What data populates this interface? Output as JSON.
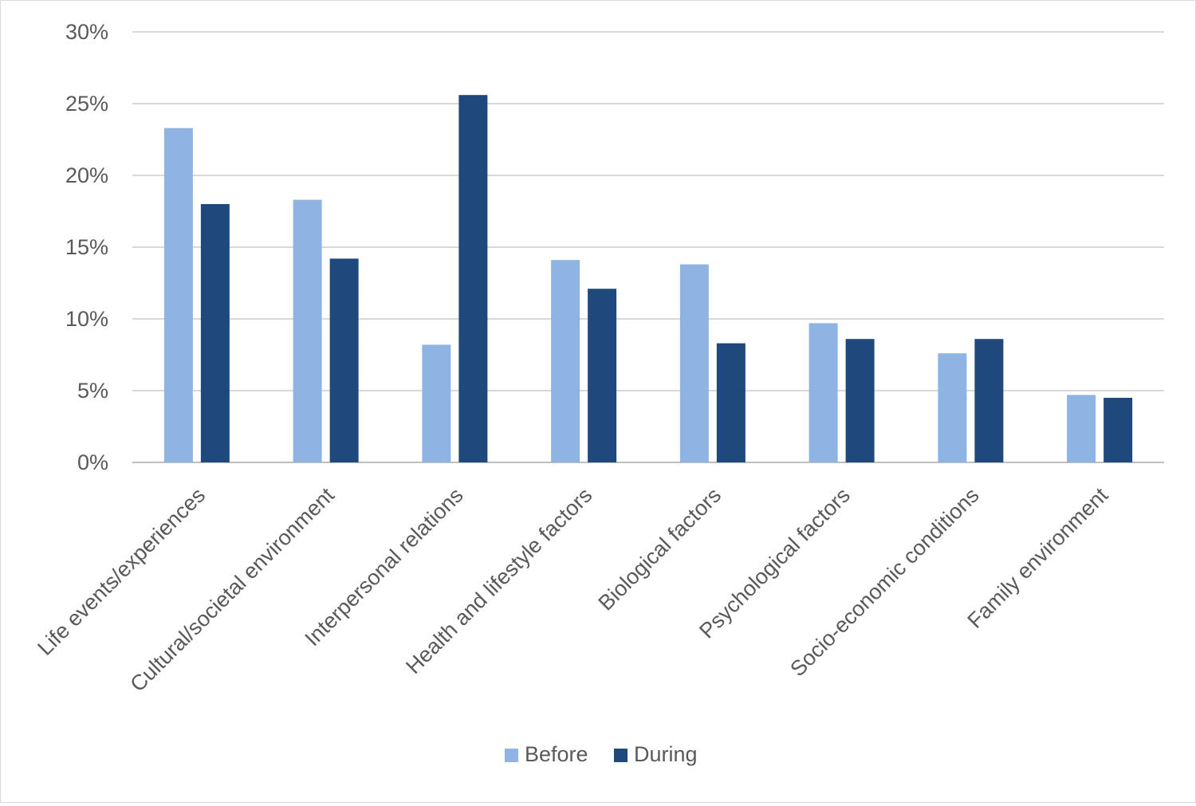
{
  "chart_data": {
    "type": "bar",
    "title": "",
    "xlabel": "",
    "ylabel": "",
    "categories": [
      "Life events/experiences",
      "Cultural/societal environment",
      "Interpersonal relations",
      "Health and lifestyle factors",
      "Biological factors",
      "Psychological factors",
      "Socio-economic conditions",
      "Family environment"
    ],
    "series": [
      {
        "name": "Before",
        "color": "#8eb4e3",
        "values": [
          23.3,
          18.3,
          8.2,
          14.1,
          13.8,
          9.7,
          7.6,
          4.7
        ]
      },
      {
        "name": "During",
        "color": "#1f497d",
        "values": [
          18.0,
          14.2,
          25.6,
          12.1,
          8.3,
          8.6,
          8.6,
          4.5
        ]
      }
    ],
    "ylim": [
      0,
      30
    ],
    "yticks": [
      0,
      5,
      10,
      15,
      20,
      25,
      30
    ],
    "ytick_labels": [
      "0%",
      "5%",
      "10%",
      "15%",
      "20%",
      "25%",
      "30%"
    ],
    "grid": true,
    "legend": "bottom"
  }
}
